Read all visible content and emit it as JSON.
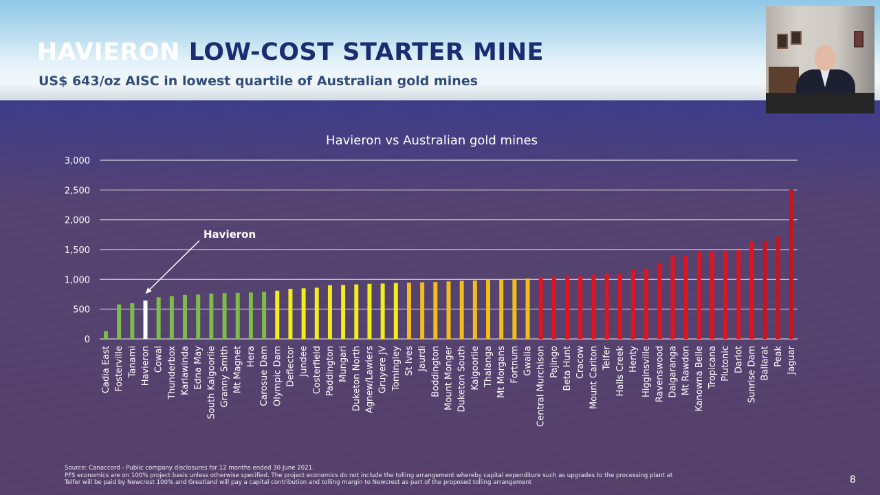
{
  "header": {
    "title_highlight": "HAVIERON",
    "title_rest": "LOW-COST STARTER MINE",
    "subtitle": "US$ 643/oz AISC in lowest quartile of Australian gold mines"
  },
  "footer": {
    "source_line1": "Source: Canaccord - Public company disclosures for 12 months ended 30 June 2021.",
    "source_line2": "PFS economics are on 100% project basis unless otherwise specified. The project economics do not include the tolling arrangement whereby capital expenditure such as upgrades to the processing plant at",
    "source_line3": "Telfer will be paid by Newcrest 100% and Greatland will pay a capital contribution and tolling margin to Newcrest as part of the proposed tolling arrangement",
    "page_number": "8"
  },
  "colors": {
    "green": "#7dbb4a",
    "highlight": "#ffffff",
    "yellow": "#f2ee1a",
    "orange": "#f2bd1a",
    "red": "#e0141e",
    "dark_red": "#c9141e"
  },
  "chart_data": {
    "type": "bar",
    "title": "Havieron vs Australian gold mines",
    "xlabel": "",
    "ylabel": "",
    "ylim": [
      0,
      3000
    ],
    "yticks": [
      0,
      500,
      1000,
      1500,
      2000,
      2500,
      3000
    ],
    "ytick_labels": [
      "0",
      "500",
      "1,000",
      "1,500",
      "2,000",
      "2,500",
      "3,000"
    ],
    "grid": true,
    "annotation": {
      "text": "Havieron",
      "target": "Havieron"
    },
    "categories": [
      "Cadia East",
      "Fosterville",
      "Tanami",
      "Havieron",
      "Cowal",
      "Thunderbox",
      "Karlawinda",
      "Edna May",
      "South Kalgoorlie",
      "Granny Smith",
      "Mt Magnet",
      "Hera",
      "Carosue Dam",
      "Olympic Dam",
      "Deflector",
      "Jundee",
      "Costerfield",
      "Paddington",
      "Mungari",
      "Duketon North",
      "Agnew/Lawlers",
      "Gruyere JV",
      "Tomingley",
      "St Ives",
      "Jaurdi",
      "Boddington",
      "Mount Monger",
      "Duketon South",
      "Kalgoorlie",
      "Thalanga",
      "Mt Morgans",
      "Fortnum",
      "Gwalia",
      "Central Murchison",
      "Pajingo",
      "Beta Hunt",
      "Cracow",
      "Mount Carlton",
      "Telfer",
      "Halls Creek",
      "Henty",
      "Higginsville",
      "Ravenswood",
      "Dalgaranga",
      "Mt Rawdon",
      "Kanowna Belle",
      "Tropicana",
      "Plutonic",
      "Darlot",
      "Sunrise Dam",
      "Ballarat",
      "Peak",
      "Jaguar"
    ],
    "values": [
      130,
      580,
      600,
      643,
      700,
      720,
      740,
      745,
      760,
      770,
      775,
      780,
      790,
      810,
      840,
      850,
      860,
      900,
      905,
      915,
      925,
      930,
      940,
      945,
      950,
      955,
      965,
      975,
      980,
      990,
      1000,
      1010,
      1015,
      1040,
      1045,
      1050,
      1060,
      1080,
      1090,
      1100,
      1170,
      1180,
      1260,
      1390,
      1400,
      1460,
      1470,
      1480,
      1490,
      1640,
      1650,
      1720,
      2510
    ],
    "bar_colors": [
      "green",
      "green",
      "green",
      "highlight",
      "green",
      "green",
      "green",
      "green",
      "green",
      "green",
      "green",
      "green",
      "green",
      "yellow",
      "yellow",
      "yellow",
      "yellow",
      "yellow",
      "yellow",
      "yellow",
      "yellow",
      "yellow",
      "yellow",
      "orange",
      "orange",
      "orange",
      "orange",
      "orange",
      "orange",
      "orange",
      "orange",
      "orange",
      "orange",
      "red",
      "red",
      "red",
      "red",
      "red",
      "red",
      "red",
      "red",
      "red",
      "red",
      "red",
      "red",
      "red",
      "red",
      "red",
      "red",
      "red",
      "dark_red",
      "dark_red",
      "dark_red"
    ]
  }
}
